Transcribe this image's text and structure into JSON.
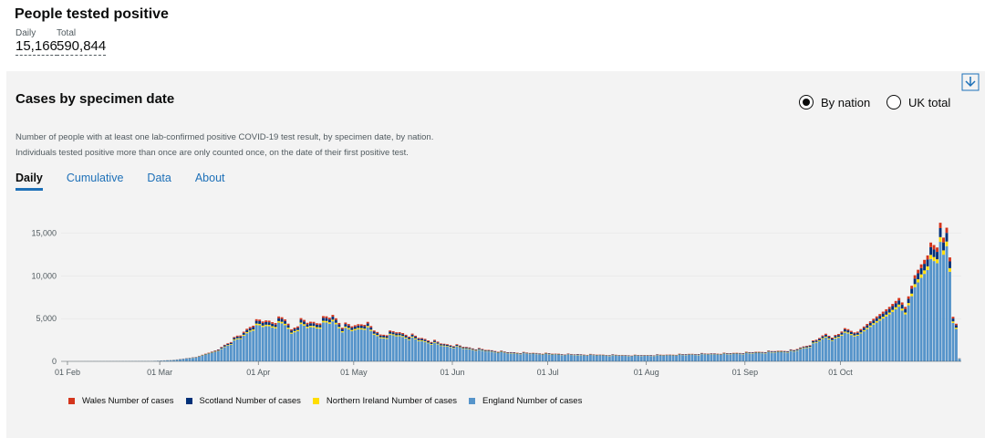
{
  "header": {
    "title": "People tested positive",
    "daily_label": "Daily",
    "daily_value": "15,166",
    "total_label": "Total",
    "total_value": "590,844"
  },
  "card": {
    "title": "Cases by specimen date",
    "radio_by_nation": "By nation",
    "radio_uk_total": "UK total",
    "selected": "By nation",
    "desc_line1": "Number of people with at least one lab-confirmed positive COVID-19 test result, by specimen date, by nation.",
    "desc_line2": "Individuals tested positive more than once are only counted once, on the date of their first positive test.",
    "tabs": [
      "Daily",
      "Cumulative",
      "Data",
      "About"
    ],
    "active_tab": "Daily"
  },
  "colors": {
    "wales": "#d4351c",
    "scotland": "#003078",
    "ni": "#ffdd00",
    "england": "#5694ca",
    "link": "#1d70b8"
  },
  "chart_data": {
    "type": "bar",
    "stacked": true,
    "y_ticks": [
      "0",
      "5,000",
      "10,000",
      "15,000"
    ],
    "ylim": [
      0,
      17000
    ],
    "x_ticks": [
      "01 Feb",
      "01 Mar",
      "01 Apr",
      "01 May",
      "01 Jun",
      "01 Jul",
      "01 Aug",
      "01 Sep",
      "01 Oct"
    ],
    "start_date": "2020-01-30",
    "anchors_england": [
      [
        0,
        0
      ],
      [
        28,
        30
      ],
      [
        35,
        150
      ],
      [
        42,
        450
      ],
      [
        49,
        1200
      ],
      [
        56,
        2600
      ],
      [
        60,
        3700
      ],
      [
        63,
        4000
      ],
      [
        66,
        3900
      ],
      [
        70,
        4200
      ],
      [
        72,
        3100
      ],
      [
        75,
        3900
      ],
      [
        80,
        3800
      ],
      [
        85,
        4500
      ],
      [
        88,
        3500
      ],
      [
        92,
        3500
      ],
      [
        95,
        3800
      ],
      [
        100,
        2600
      ],
      [
        105,
        2900
      ],
      [
        110,
        2500
      ],
      [
        115,
        2100
      ],
      [
        120,
        1700
      ],
      [
        125,
        1500
      ],
      [
        130,
        1250
      ],
      [
        140,
        900
      ],
      [
        150,
        800
      ],
      [
        160,
        700
      ],
      [
        170,
        650
      ],
      [
        180,
        600
      ],
      [
        190,
        650
      ],
      [
        200,
        750
      ],
      [
        210,
        800
      ],
      [
        220,
        950
      ],
      [
        230,
        1100
      ],
      [
        235,
        1700
      ],
      [
        240,
        2700
      ],
      [
        243,
        2400
      ],
      [
        246,
        3200
      ],
      [
        250,
        3000
      ],
      [
        255,
        4300
      ],
      [
        260,
        5500
      ],
      [
        263,
        6400
      ],
      [
        265,
        5500
      ],
      [
        268,
        8700
      ],
      [
        270,
        9800
      ],
      [
        272,
        10700
      ],
      [
        273,
        12000
      ],
      [
        275,
        11500
      ],
      [
        276,
        14000
      ],
      [
        277,
        12500
      ],
      [
        278,
        13500
      ],
      [
        279,
        10500
      ],
      [
        280,
        4500
      ],
      [
        281,
        3800
      ],
      [
        282,
        300
      ]
    ],
    "share": {
      "wales": 0.045,
      "scotland": 0.075,
      "ni": 0.04
    },
    "series": [
      {
        "name": "Wales Number of cases"
      },
      {
        "name": "Scotland Number of cases"
      },
      {
        "name": "Northern Ireland Number of cases"
      },
      {
        "name": "England Number of cases"
      }
    ]
  }
}
